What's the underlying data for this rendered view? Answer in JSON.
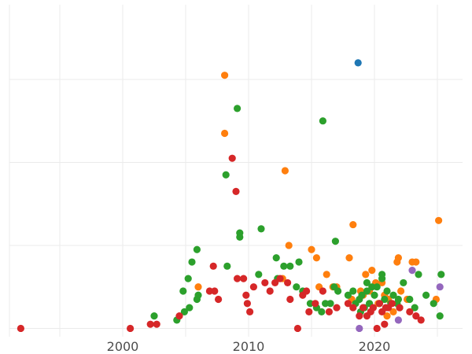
{
  "chart_data": {
    "type": "scatter",
    "title": "",
    "xlabel": "",
    "ylabel": "",
    "xlim": [
      1991,
      2027
    ],
    "ylim": [
      -0.2,
      7.8
    ],
    "x_ticks": [
      2000,
      2010,
      2020
    ],
    "x_tick_labels": [
      "2000",
      "2010",
      "2020"
    ],
    "y_ticks": [
      0,
      2,
      4,
      6
    ],
    "grid": true,
    "legend": "none",
    "series": [
      {
        "color": "#1f77b4",
        "points": [
          [
            2018.7,
            6.4
          ]
        ]
      },
      {
        "color": "#ff7f0e",
        "points": [
          [
            2008.1,
            6.1
          ],
          [
            2008.1,
            4.7
          ],
          [
            2012.9,
            3.8
          ],
          [
            2013.2,
            2.0
          ],
          [
            2015.0,
            1.9
          ],
          [
            2015.4,
            1.7
          ],
          [
            2018.0,
            1.7
          ],
          [
            2018.3,
            2.5
          ],
          [
            2006.0,
            1.0
          ],
          [
            2012.7,
            1.2
          ],
          [
            2015.6,
            1.0
          ],
          [
            2016.2,
            1.3
          ],
          [
            2016.7,
            1.0
          ],
          [
            2017.0,
            1.0
          ],
          [
            2018.2,
            0.7
          ],
          [
            2018.9,
            0.9
          ],
          [
            2019.1,
            0.8
          ],
          [
            2019.3,
            1.3
          ],
          [
            2019.6,
            0.9
          ],
          [
            2019.8,
            1.4
          ],
          [
            2020.1,
            1.1
          ],
          [
            2020.3,
            0.6
          ],
          [
            2020.6,
            1.1
          ],
          [
            2020.8,
            0.8
          ],
          [
            2021.1,
            0.7
          ],
          [
            2021.5,
            0.4
          ],
          [
            2021.8,
            1.6
          ],
          [
            2021.9,
            1.7
          ],
          [
            2022.1,
            0.9
          ],
          [
            2022.6,
            0.7
          ],
          [
            2023.0,
            1.6
          ],
          [
            2023.3,
            1.6
          ],
          [
            2024.9,
            0.7
          ],
          [
            2025.1,
            2.6
          ],
          [
            2021.0,
            0.3
          ]
        ]
      },
      {
        "color": "#2ca02c",
        "points": [
          [
            2009.1,
            5.3
          ],
          [
            2015.9,
            5.0
          ],
          [
            2008.2,
            3.7
          ],
          [
            2009.3,
            2.3
          ],
          [
            2009.3,
            2.2
          ],
          [
            2011.0,
            2.4
          ],
          [
            2005.9,
            1.9
          ],
          [
            2016.9,
            2.1
          ],
          [
            2005.5,
            1.6
          ],
          [
            2008.3,
            1.5
          ],
          [
            2012.2,
            1.7
          ],
          [
            2012.8,
            1.5
          ],
          [
            2013.3,
            1.5
          ],
          [
            2014.0,
            1.6
          ],
          [
            2010.8,
            1.3
          ],
          [
            2012.3,
            1.2
          ],
          [
            2013.8,
            1.0
          ],
          [
            2005.2,
            1.2
          ],
          [
            2004.8,
            0.9
          ],
          [
            2005.9,
            0.7
          ],
          [
            2006.0,
            0.8
          ],
          [
            2005.3,
            0.5
          ],
          [
            2004.9,
            0.4
          ],
          [
            2004.3,
            0.2
          ],
          [
            2002.5,
            0.3
          ],
          [
            2014.3,
            0.9
          ],
          [
            2014.9,
            0.6
          ],
          [
            2015.4,
            0.5
          ],
          [
            2015.8,
            0.4
          ],
          [
            2016.1,
            0.6
          ],
          [
            2016.5,
            0.6
          ],
          [
            2016.8,
            1.0
          ],
          [
            2017.1,
            0.9
          ],
          [
            2017.9,
            0.8
          ],
          [
            2018.3,
            0.9
          ],
          [
            2018.5,
            0.6
          ],
          [
            2018.8,
            0.7
          ],
          [
            2019.0,
            0.8
          ],
          [
            2019.2,
            0.5
          ],
          [
            2019.4,
            0.9
          ],
          [
            2019.6,
            0.6
          ],
          [
            2019.8,
            1.0
          ],
          [
            2020.0,
            0.8
          ],
          [
            2020.2,
            1.0
          ],
          [
            2020.4,
            0.6
          ],
          [
            2020.6,
            1.2
          ],
          [
            2020.8,
            0.7
          ],
          [
            2021.0,
            0.9
          ],
          [
            2021.3,
            0.6
          ],
          [
            2021.5,
            0.8
          ],
          [
            2021.9,
            0.7
          ],
          [
            2022.3,
            1.1
          ],
          [
            2022.8,
            0.7
          ],
          [
            2023.2,
            0.5
          ],
          [
            2023.5,
            1.3
          ],
          [
            2024.1,
            0.8
          ],
          [
            2024.7,
            0.6
          ],
          [
            2025.2,
            0.3
          ],
          [
            2025.3,
            1.3
          ],
          [
            2018.9,
            0.4
          ],
          [
            2020.6,
            1.3
          ],
          [
            2021.8,
            0.6
          ],
          [
            2022.0,
            0.5
          ],
          [
            2019.4,
            1.1
          ]
        ]
      },
      {
        "color": "#d62728",
        "points": [
          [
            1991.9,
            0.0
          ],
          [
            2000.6,
            0.0
          ],
          [
            2002.2,
            0.1
          ],
          [
            2002.7,
            0.1
          ],
          [
            2004.5,
            0.3
          ],
          [
            2006.9,
            0.9
          ],
          [
            2007.2,
            1.5
          ],
          [
            2007.3,
            0.9
          ],
          [
            2007.6,
            0.7
          ],
          [
            2008.7,
            4.1
          ],
          [
            2009.0,
            3.3
          ],
          [
            2009.1,
            1.2
          ],
          [
            2009.6,
            1.2
          ],
          [
            2009.8,
            0.8
          ],
          [
            2009.9,
            0.6
          ],
          [
            2010.1,
            0.4
          ],
          [
            2010.4,
            1.0
          ],
          [
            2011.3,
            1.1
          ],
          [
            2011.7,
            0.9
          ],
          [
            2012.1,
            1.1
          ],
          [
            2012.5,
            1.2
          ],
          [
            2013.1,
            1.1
          ],
          [
            2013.3,
            0.7
          ],
          [
            2013.9,
            0.0
          ],
          [
            2014.3,
            0.8
          ],
          [
            2014.6,
            0.9
          ],
          [
            2014.8,
            0.4
          ],
          [
            2015.3,
            0.6
          ],
          [
            2015.9,
            0.9
          ],
          [
            2016.4,
            0.4
          ],
          [
            2017.0,
            0.5
          ],
          [
            2017.9,
            0.6
          ],
          [
            2018.3,
            0.5
          ],
          [
            2018.8,
            0.3
          ],
          [
            2019.1,
            0.5
          ],
          [
            2019.4,
            0.3
          ],
          [
            2019.7,
            0.4
          ],
          [
            2019.9,
            0.5
          ],
          [
            2020.2,
            0.0
          ],
          [
            2020.4,
            0.6
          ],
          [
            2020.6,
            0.4
          ],
          [
            2020.8,
            0.1
          ],
          [
            2021.1,
            0.5
          ],
          [
            2021.4,
            0.6
          ],
          [
            2022.0,
            0.5
          ],
          [
            2022.8,
            0.4
          ],
          [
            2023.3,
            0.3
          ],
          [
            2023.7,
            0.2
          ],
          [
            2020.9,
            0.5
          ]
        ]
      },
      {
        "color": "#9467bd",
        "points": [
          [
            2018.8,
            0.0
          ],
          [
            2021.9,
            0.2
          ],
          [
            2023.0,
            1.4
          ],
          [
            2025.2,
            1.0
          ]
        ]
      }
    ]
  }
}
